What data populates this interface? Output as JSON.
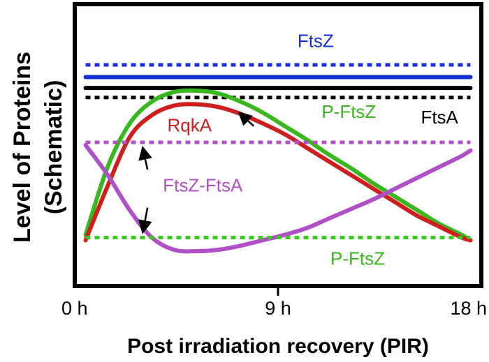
{
  "chart_data": {
    "type": "line",
    "title": "",
    "ylabel_line1": "Level of Proteins",
    "ylabel_line2": "(Schematic)",
    "xlabel": "Post irradiation recovery (PIR)",
    "x_ticks": [
      "0 h",
      "9 h",
      "18 h"
    ],
    "x_tick_values": [
      0,
      9,
      18
    ],
    "xlim": [
      0,
      18
    ],
    "ylim": [
      0,
      100
    ],
    "y_axis_numbers_shown": false,
    "grid": false,
    "legend": "none (series labeled by in-plot annotations)",
    "series": [
      {
        "name": "FtsZ",
        "label": "FtsZ",
        "style": "solid",
        "color": "#1430d0",
        "x": [
          0.3,
          17.7
        ],
        "y": [
          75,
          75
        ]
      },
      {
        "name": "FtsZ",
        "label": "FtsZ",
        "style": "dotted",
        "color": "#1a2ee0",
        "x": [
          0.3,
          17.7
        ],
        "y": [
          79.5,
          79.5
        ]
      },
      {
        "name": "FtsA",
        "label": "FtsA",
        "style": "solid",
        "color": "#000000",
        "x": [
          0.3,
          17.7
        ],
        "y": [
          71,
          71
        ]
      },
      {
        "name": "FtsA",
        "label": "FtsA",
        "style": "dotted",
        "color": "#000000",
        "x": [
          0.3,
          17.7
        ],
        "y": [
          67.5,
          67.5
        ]
      },
      {
        "name": "P-FtsZ",
        "label": "P-FtsZ",
        "style": "solid",
        "color": "#39b81e",
        "x": [
          0.3,
          1.3,
          2.3,
          3.3,
          4.3,
          5.3,
          6.3,
          7.3,
          8.3,
          9.3,
          10.3,
          11.3,
          12.3,
          13.3,
          14.3,
          15.3,
          16.3,
          17.3,
          17.7
        ],
        "y": [
          17,
          42,
          58,
          66,
          69.5,
          70,
          69,
          66,
          62,
          57,
          52,
          46.5,
          41.5,
          36,
          31,
          26,
          21,
          17,
          15
        ]
      },
      {
        "name": "RqkA",
        "label": "RqkA",
        "style": "solid",
        "color": "#d01e1e",
        "x": [
          0.3,
          1.3,
          2.3,
          3.3,
          4.3,
          5.3,
          6.3,
          7.3,
          8.3,
          9.3,
          10.3,
          11.3,
          12.3,
          13.3,
          14.3,
          15.3,
          16.3,
          17.3,
          17.7
        ],
        "y": [
          15,
          35,
          53,
          61,
          64.5,
          65,
          64,
          61.5,
          58,
          54,
          49,
          44,
          39,
          34,
          29,
          24,
          20,
          16,
          15
        ]
      },
      {
        "name": "FtsZ-FtsA",
        "label": "FtsZ-FtsA",
        "style": "solid",
        "color": "#b050c8",
        "x": [
          0.3,
          1.3,
          2.3,
          3.3,
          4.3,
          5.3,
          6.3,
          7.3,
          8.3,
          9.3,
          10.3,
          11.3,
          12.3,
          13.3,
          14.3,
          15.3,
          16.3,
          17.3,
          17.7
        ],
        "y": [
          50,
          39,
          26,
          16,
          11.5,
          11,
          11.5,
          13,
          15,
          17,
          19.5,
          23,
          26.5,
          30,
          34,
          38,
          42,
          46,
          48
        ]
      },
      {
        "name": "FtsZ-FtsA",
        "label": "FtsZ-FtsA",
        "style": "dotted",
        "color": "#b050c8",
        "x": [
          0.3,
          17.7
        ],
        "y": [
          51,
          51
        ]
      },
      {
        "name": "P-FtsZ",
        "label": "P-FtsZ",
        "style": "dotted",
        "color": "#39c81e",
        "x": [
          0.3,
          17.7
        ],
        "y": [
          16,
          16
        ]
      }
    ],
    "annotations": [
      {
        "text": "FtsZ",
        "color": "#1430d0",
        "x": 10.7,
        "y": 86
      },
      {
        "text": "FtsA",
        "color": "#000000",
        "x": 16.3,
        "y": 58
      },
      {
        "text": "P-FtsZ",
        "color": "#39b81e",
        "x": 12.2,
        "y": 60
      },
      {
        "text": "RqkA",
        "color": "#d01e1e",
        "x": 5.0,
        "y": 55
      },
      {
        "text": "FtsZ-FtsA",
        "color": "#b050c8",
        "x": 5.6,
        "y": 33
      },
      {
        "text": "P-FtsZ",
        "color": "#39b81e",
        "x": 12.6,
        "y": 6
      },
      {
        "text": "",
        "color": "#000000",
        "x": 7.9,
        "y": 57,
        "arrow_to_x": 7.3,
        "arrow_to_y": 61.5
      },
      {
        "text": "",
        "color": "#000000",
        "x": 3.1,
        "y": 41,
        "arrow_to_x": 2.9,
        "arrow_to_y": 48.5
      },
      {
        "text": "",
        "color": "#000000",
        "x": 3.1,
        "y": 27,
        "arrow_to_x": 2.9,
        "arrow_to_y": 18.5
      }
    ]
  }
}
